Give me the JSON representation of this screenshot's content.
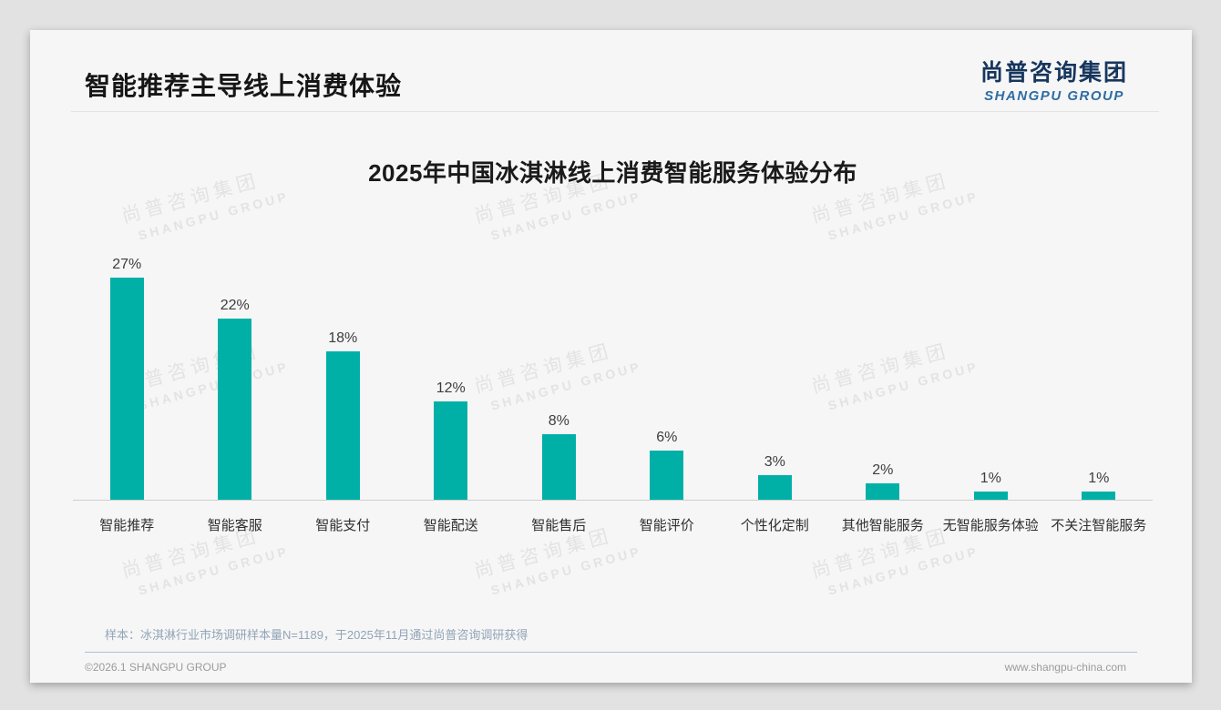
{
  "page": {
    "header": {
      "title": "智能推荐主导线上消费体验"
    },
    "logo": {
      "zh": "尚普咨询集团",
      "en": "SHANGPU GROUP"
    },
    "watermark": {
      "line1": "尚普咨询集团",
      "line2": "SHANGPU GROUP"
    },
    "note": "样本：冰淇淋行业市场调研样本量N=1189，于2025年11月通过尚普咨询调研获得",
    "footer": {
      "copyright": "©2026.1 SHANGPU GROUP",
      "website": "www.shangpu-china.com"
    }
  },
  "colors": {
    "bar": "#00b0a7",
    "logo_zh": "#17365d",
    "logo_en": "#2e6da4",
    "note_text": "#92a4b6"
  },
  "chart_data": {
    "type": "bar",
    "title": "2025年中国冰淇淋线上消费智能服务体验分布",
    "categories": [
      "智能推荐",
      "智能客服",
      "智能支付",
      "智能配送",
      "智能售后",
      "智能评价",
      "个性化定制",
      "其他智能服务",
      "无智能服务体验",
      "不关注智能服务"
    ],
    "values": [
      27,
      22,
      18,
      12,
      8,
      6,
      3,
      2,
      1,
      1
    ],
    "unit": "%",
    "bar_color": "#00b0a7",
    "xlabel": "",
    "ylabel": "",
    "ylim": [
      0,
      30
    ],
    "grid": false,
    "legend": false,
    "value_labels_shown": true
  }
}
